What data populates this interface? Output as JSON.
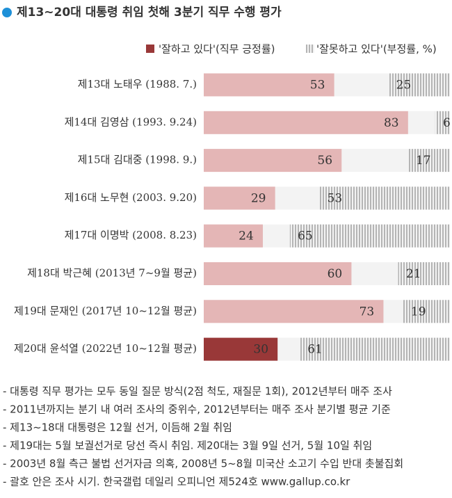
{
  "chart_data": {
    "type": "bar",
    "title": "제13~20대 대통령 취임 첫해 3분기 직무 수행 평가",
    "categories": [
      "제13대 노태우 (1988. 7.)",
      "제14대 김영삼 (1993. 9.24)",
      "제15대 김대중 (1998. 9.)",
      "제16대 노무현 (2003. 9.20)",
      "제17대 이명박 (2008. 8.23)",
      "제18대 박근혜 (2013년 7~9월 평균)",
      "제19대 문재인 (2017년 10~12월 평균)",
      "제20대 윤석열 (2022년 10~12월 평균)"
    ],
    "series": [
      {
        "name": "'잘하고 있다'(직무 긍정률)",
        "color": "#993838",
        "colors": [
          "#e4b6b6",
          "#e4b6b6",
          "#e4b6b6",
          "#e4b6b6",
          "#e4b6b6",
          "#e4b6b6",
          "#e4b6b6",
          "#993838"
        ],
        "values": [
          53,
          83,
          56,
          29,
          24,
          60,
          73,
          30
        ]
      },
      {
        "name": "'잘못하고 있다'(부정률, %)",
        "color": "#9a9a9a",
        "values": [
          25,
          6,
          17,
          53,
          65,
          21,
          19,
          61
        ]
      }
    ],
    "xlim": [
      0,
      100
    ]
  },
  "notes": [
    "- 대통령 직무 평가는 모두 동일 질문 방식(2점 척도, 재질문 1회), 2012년부터 매주 조사",
    "- 2011년까지는 분기 내 여러 조사의 중위수, 2012년부터는 매주 조사 분기별 평균 기준",
    "- 제13~18대 대통령은 12월 선거, 이듬해 2월 취임",
    "- 제19대는 5월 보궐선거로 당선 즉시 취임. 제20대는 3월 9일 선거, 5월 10일 취임",
    "- 2003년 8월 측근 불법 선거자금 의혹, 2008년 5~8월 미국산 소고기 수입 반대 촛불집회",
    "- 괄호 안은 조사 시기. 한국갤럽 데일리 오피니언 제524호 www.gallup.co.kr"
  ]
}
